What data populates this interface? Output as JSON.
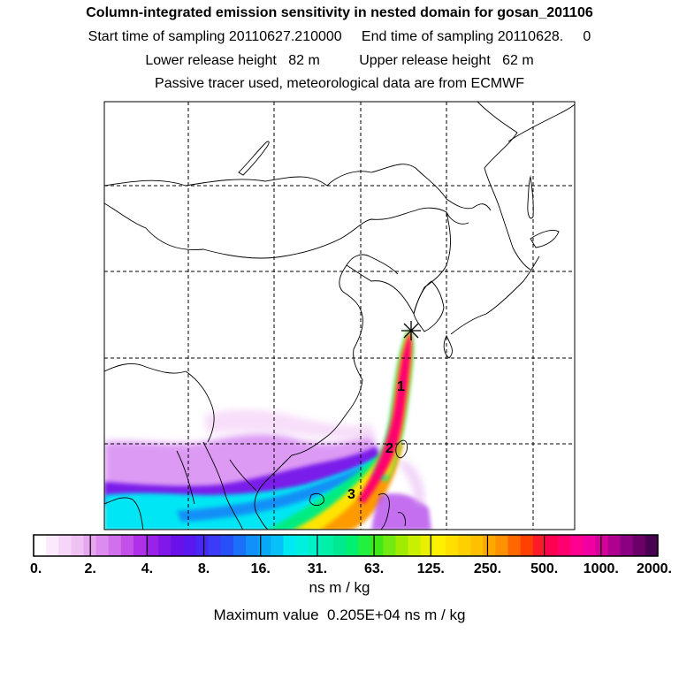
{
  "header": {
    "title": "Column-integrated emission sensitivity in nested domain for gosan_201106",
    "sampling_line": "Start time of sampling 20110627.210000     End time of sampling 20110628.     0",
    "release_line": "Lower release height   82 m          Upper release height   62 m",
    "tracer_line": "Passive tracer used, meteorological data are from ECMWF"
  },
  "map": {
    "release_site_marker": "star",
    "plume_labels": [
      "1",
      "2",
      "3"
    ]
  },
  "colorbar": {
    "tick_labels": [
      "0.",
      "2.",
      "4.",
      "8.",
      "16.",
      "31.",
      "63.",
      "125.",
      "250.",
      "500.",
      "1000.",
      "2000."
    ],
    "units": "ns m / kg",
    "max_value_text": "Maximum value  0.205E+04 ns m / kg",
    "colors": [
      "#ffffff",
      "#fbeafb",
      "#f6d6f8",
      "#f0c2f4",
      "#e6a6f0",
      "#dc8cee",
      "#d070ec",
      "#c450ea",
      "#b030ea",
      "#9a20ea",
      "#8018ea",
      "#6a10e8",
      "#5a18f0",
      "#4a28f4",
      "#3c3cf8",
      "#2850f8",
      "#1a70f8",
      "#1090f8",
      "#08a8f8",
      "#08c0f8",
      "#00e8f0",
      "#00f0e0",
      "#00f0c8",
      "#00f0a8",
      "#00e890",
      "#00f070",
      "#20f040",
      "#40e818",
      "#70ea10",
      "#a0ec00",
      "#c8f000",
      "#e8f000",
      "#fff000",
      "#ffe000",
      "#ffd000",
      "#ffc000",
      "#ffa800",
      "#ff9000",
      "#ff6800",
      "#ff4000",
      "#ff1a2a",
      "#ff0050",
      "#ff0070",
      "#ff0090",
      "#f000a0",
      "#d8009a",
      "#b00090",
      "#8a0080",
      "#6a0068",
      "#4a0050"
    ]
  }
}
